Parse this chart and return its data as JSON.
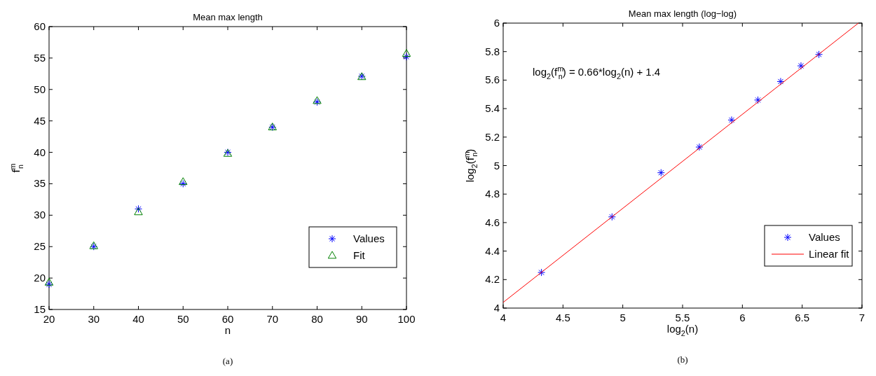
{
  "chart_data": [
    {
      "type": "scatter",
      "title": "Mean max length",
      "xlabel": "n",
      "ylabel": "f$^{m}$$_{n}$",
      "xlim": [
        20,
        100
      ],
      "ylim": [
        15,
        60
      ],
      "xticks": [
        20,
        30,
        40,
        50,
        60,
        70,
        80,
        90,
        100
      ],
      "yticks": [
        15,
        20,
        25,
        30,
        35,
        40,
        45,
        50,
        55,
        60
      ],
      "x": [
        20,
        30,
        40,
        50,
        60,
        70,
        80,
        90,
        100
      ],
      "legend": "bottom right",
      "grid": false,
      "annotations": [
        "(a)"
      ],
      "series": [
        {
          "name": "Values",
          "color": "#0000ff",
          "marker": "cross",
          "values": [
            19,
            25,
            31,
            35,
            40,
            44,
            48,
            52.1,
            55.2
          ]
        },
        {
          "name": "Fit",
          "color": "#008000",
          "marker": "triangle",
          "values": [
            19.3,
            25.1,
            30.5,
            35.3,
            39.8,
            44,
            48.2,
            52,
            55.7
          ]
        }
      ]
    },
    {
      "type": "scatter",
      "title": "Mean max length (log−log)",
      "xlabel": "log$_{2}$(n)",
      "ylabel": "log$_{2}$(f$^{m}$$_{n}$)",
      "xlim": [
        4,
        7
      ],
      "ylim": [
        4,
        6
      ],
      "xticks": [
        4,
        4.5,
        5,
        5.5,
        6,
        6.5,
        7
      ],
      "yticks": [
        4,
        4.2,
        4.4,
        4.6,
        4.8,
        5,
        5.2,
        5.4,
        5.6,
        5.8,
        6
      ],
      "legend": "bottom right",
      "grid": false,
      "annotations": [
        "log$_{2}$(f$^{m}$$_{n}$) = 0.66*log$_{2}$(n) + 1.4",
        "(b)"
      ],
      "series": [
        {
          "name": "Values",
          "color": "#0000ff",
          "marker": "cross",
          "x": [
            4.32,
            4.91,
            5.32,
            5.64,
            5.91,
            6.13,
            6.32,
            6.49,
            6.64
          ],
          "values": [
            4.25,
            4.64,
            4.95,
            5.13,
            5.32,
            5.46,
            5.59,
            5.7,
            5.78
          ]
        },
        {
          "name": "Linear fit",
          "type": "line",
          "color": "#ff0000",
          "marker": "none",
          "x": [
            4,
            6.97
          ],
          "values": [
            4.04,
            6
          ]
        }
      ]
    }
  ]
}
